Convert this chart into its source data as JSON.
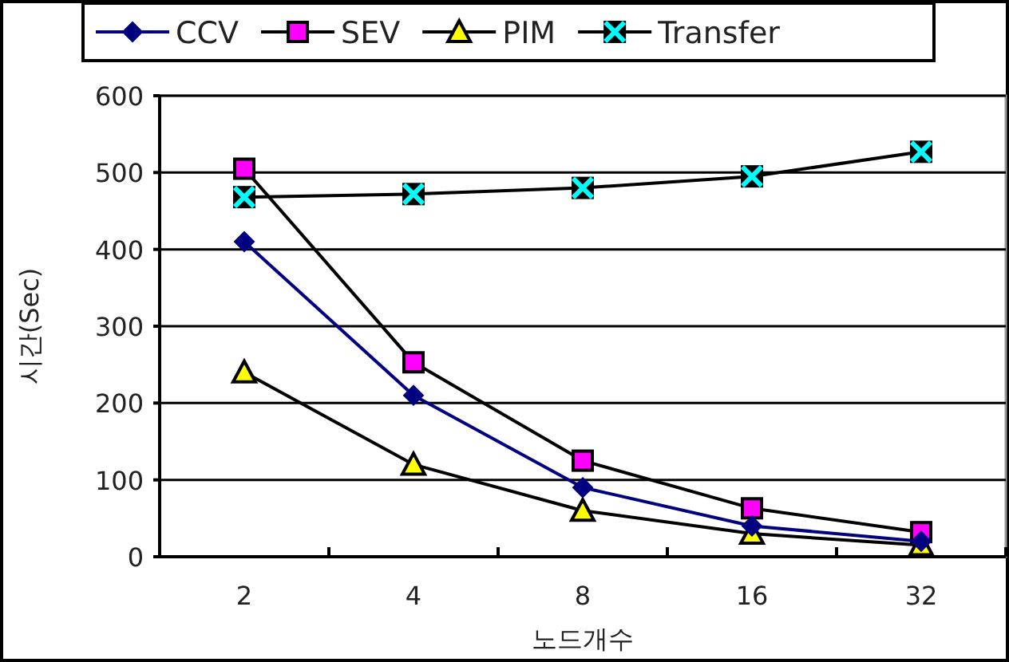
{
  "chart_data": {
    "type": "line",
    "xlabel": "노드개수",
    "ylabel": "시간(Sec)",
    "categories": [
      "2",
      "4",
      "8",
      "16",
      "32"
    ],
    "series": [
      {
        "name": "CCV",
        "color": "#000080",
        "marker": "diamond",
        "values": [
          410,
          210,
          90,
          40,
          20
        ]
      },
      {
        "name": "SEV",
        "color": "#ff00ff",
        "marker": "square",
        "values": [
          505,
          253,
          125,
          63,
          32
        ]
      },
      {
        "name": "PIM",
        "color": "#ffff00",
        "marker": "triangle",
        "values": [
          240,
          120,
          60,
          30,
          15
        ]
      },
      {
        "name": "Transfer",
        "color": "#00ffff",
        "marker": "cross",
        "values": [
          468,
          472,
          480,
          495,
          527
        ]
      }
    ],
    "ylim": [
      0,
      600
    ],
    "yticks": [
      0,
      100,
      200,
      300,
      400,
      500,
      600
    ],
    "grid": "y",
    "legend": "top"
  }
}
